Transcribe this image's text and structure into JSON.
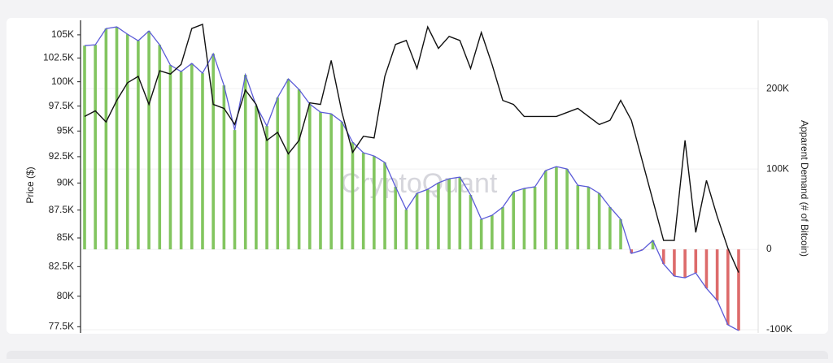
{
  "chart_data": {
    "type": "combo",
    "watermark": "CryptoQuant",
    "ylabel": "Price ($)",
    "y2label": "Apparent Demand (# of Bitcoin)",
    "ylog": true,
    "ylim": [
      77000,
      106600
    ],
    "yticks": [
      {
        "value": 105000,
        "label": "105K"
      },
      {
        "value": 102500,
        "label": "102.5K"
      },
      {
        "value": 100000,
        "label": "100K"
      },
      {
        "value": 97500,
        "label": "97.5K"
      },
      {
        "value": 95000,
        "label": "95K"
      },
      {
        "value": 92500,
        "label": "92.5K"
      },
      {
        "value": 90000,
        "label": "90K"
      },
      {
        "value": 87500,
        "label": "87.5K"
      },
      {
        "value": 85000,
        "label": "85K"
      },
      {
        "value": 82500,
        "label": "82.5K"
      },
      {
        "value": 80000,
        "label": "80K"
      },
      {
        "value": 77500,
        "label": "77.5K"
      }
    ],
    "y2lim": [
      -104000,
      285000
    ],
    "y2ticks": [
      {
        "value": 200000,
        "label": "200K"
      },
      {
        "value": 100000,
        "label": "100K"
      },
      0,
      {
        "value": -100000,
        "label": "-100K"
      }
    ],
    "grid": true,
    "series": [
      {
        "axis": "y2",
        "kind": "bar",
        "color": "#5b5bd8",
        "positive_color": "#82c55f",
        "negative_color": "#dd6b6b",
        "values": [
          253500,
          254500,
          274700,
          276800,
          267700,
          259600,
          271700,
          254500,
          229300,
          221200,
          231300,
          219200,
          243400,
          204000,
          148500,
          217200,
          178800,
          153500,
          188900,
          212100,
          199000,
          180800,
          170700,
          168700,
          158600,
          133300,
          120200,
          116200,
          108100,
          77800,
          49500,
          69700,
          74700,
          82800,
          87900,
          89900,
          67700,
          37400,
          42400,
          52500,
          71700,
          75800,
          77800,
          98000,
          103000,
          100000,
          79800,
          77800,
          69700,
          52500,
          37400,
          -5000,
          -1000,
          11100,
          -18200,
          -33300,
          -35400,
          -29300,
          -48500,
          -63600,
          -93900,
          -101000
        ]
      },
      {
        "axis": "y",
        "kind": "line",
        "color": "#111111",
        "values": [
          96450,
          97020,
          95900,
          98080,
          99890,
          100560,
          97670,
          101150,
          100800,
          101820,
          105700,
          106150,
          97670,
          97270,
          95650,
          99140,
          97670,
          94080,
          94870,
          92770,
          94080,
          97830,
          97670,
          102240,
          96860,
          92920,
          94480,
          94320,
          100560,
          103960,
          104390,
          101390,
          105870,
          103530,
          104830,
          104390,
          101390,
          105260,
          101820,
          98080,
          97670,
          96450,
          96450,
          96450,
          96450,
          96860,
          97270,
          96450,
          95650,
          96060,
          98080,
          96060,
          92150,
          88390,
          84780,
          84780,
          94080,
          85490,
          90240,
          86920,
          84090,
          82000
        ]
      }
    ]
  }
}
